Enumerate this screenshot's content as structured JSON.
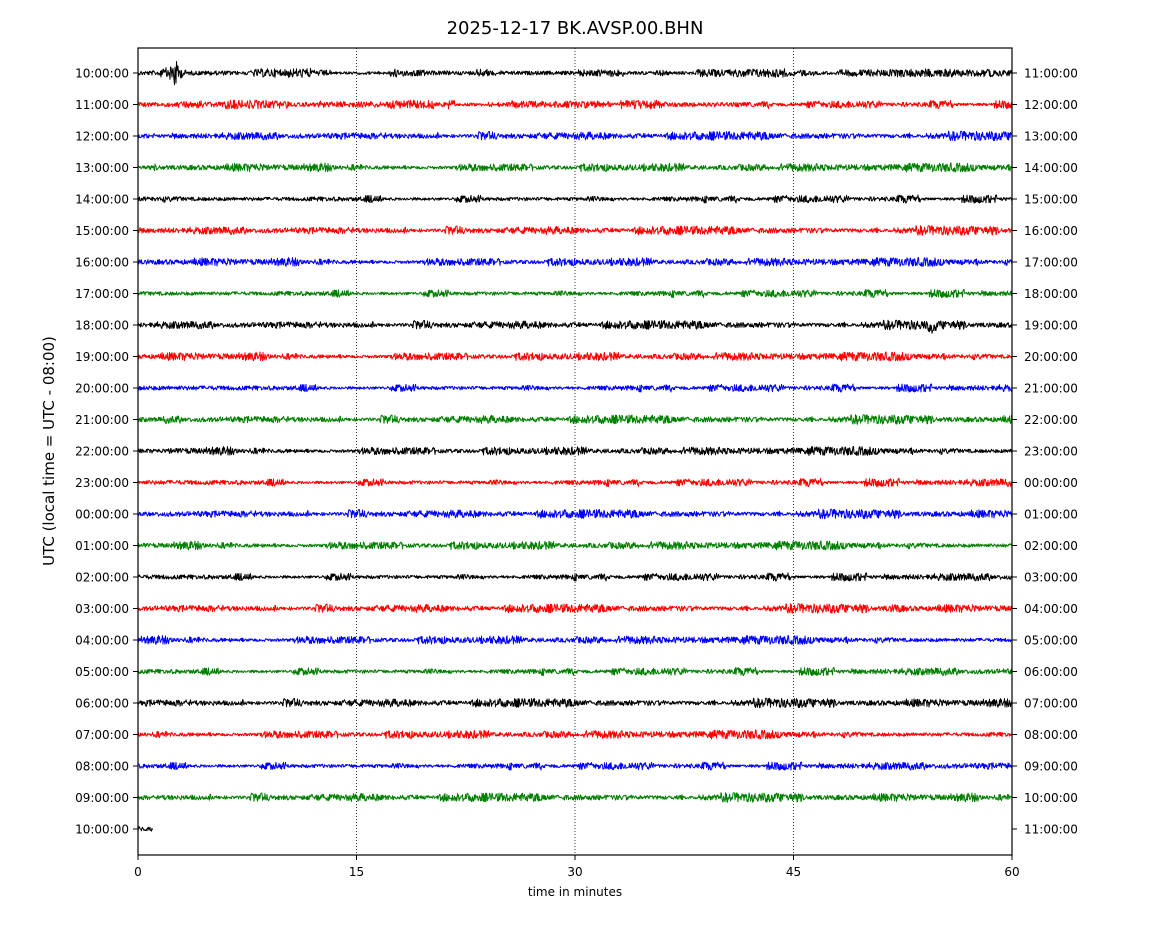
{
  "chart_data": {
    "type": "line",
    "title": "2025-12-17 BK.AVSP.00.BHN",
    "xlabel": "time in minutes",
    "ylabel": "UTC (local time = UTC - 08:00)",
    "xlim": [
      0,
      60
    ],
    "x_ticks": [
      0,
      15,
      30,
      45,
      60
    ],
    "x_tick_labels": [
      "0",
      "15",
      "30",
      "45",
      "60"
    ],
    "grid": "vertical dotted lines at 15, 30, 45",
    "trace_colors": [
      "#000000",
      "#ff0000",
      "#0000ff",
      "#008000"
    ],
    "left_tick_labels": [
      "10:00:00",
      "11:00:00",
      "12:00:00",
      "13:00:00",
      "14:00:00",
      "15:00:00",
      "16:00:00",
      "17:00:00",
      "18:00:00",
      "19:00:00",
      "20:00:00",
      "21:00:00",
      "22:00:00",
      "23:00:00",
      "00:00:00",
      "01:00:00",
      "02:00:00",
      "03:00:00",
      "04:00:00",
      "05:00:00",
      "06:00:00",
      "07:00:00",
      "08:00:00",
      "09:00:00",
      "10:00:00"
    ],
    "right_tick_labels": [
      "11:00:00",
      "12:00:00",
      "13:00:00",
      "14:00:00",
      "15:00:00",
      "16:00:00",
      "17:00:00",
      "18:00:00",
      "19:00:00",
      "20:00:00",
      "21:00:00",
      "22:00:00",
      "23:00:00",
      "00:00:00",
      "01:00:00",
      "02:00:00",
      "03:00:00",
      "04:00:00",
      "05:00:00",
      "06:00:00",
      "07:00:00",
      "08:00:00",
      "09:00:00",
      "10:00:00",
      "11:00:00"
    ],
    "series": [
      {
        "label_index": 0,
        "color": "#000000",
        "x_range": [
          0,
          60
        ],
        "events": [
          {
            "x": 2.5,
            "amplitude": "large"
          }
        ]
      },
      {
        "label_index": 1,
        "color": "#ff0000",
        "x_range": [
          0,
          60
        ]
      },
      {
        "label_index": 2,
        "color": "#0000ff",
        "x_range": [
          0,
          60
        ]
      },
      {
        "label_index": 3,
        "color": "#008000",
        "x_range": [
          0,
          60
        ]
      },
      {
        "label_index": 4,
        "color": "#000000",
        "x_range": [
          0,
          60
        ]
      },
      {
        "label_index": 5,
        "color": "#ff0000",
        "x_range": [
          0,
          60
        ]
      },
      {
        "label_index": 6,
        "color": "#0000ff",
        "x_range": [
          0,
          60
        ]
      },
      {
        "label_index": 7,
        "color": "#008000",
        "x_range": [
          0,
          60
        ]
      },
      {
        "label_index": 8,
        "color": "#000000",
        "x_range": [
          0,
          60
        ],
        "events": [
          {
            "x": 54.5,
            "amplitude": "offset"
          }
        ]
      },
      {
        "label_index": 9,
        "color": "#ff0000",
        "x_range": [
          0,
          60
        ]
      },
      {
        "label_index": 10,
        "color": "#0000ff",
        "x_range": [
          0,
          60
        ]
      },
      {
        "label_index": 11,
        "color": "#008000",
        "x_range": [
          0,
          60
        ]
      },
      {
        "label_index": 12,
        "color": "#000000",
        "x_range": [
          0,
          60
        ]
      },
      {
        "label_index": 13,
        "color": "#ff0000",
        "x_range": [
          0,
          60
        ]
      },
      {
        "label_index": 14,
        "color": "#0000ff",
        "x_range": [
          0,
          60
        ]
      },
      {
        "label_index": 15,
        "color": "#008000",
        "x_range": [
          0,
          60
        ]
      },
      {
        "label_index": 16,
        "color": "#000000",
        "x_range": [
          0,
          60
        ]
      },
      {
        "label_index": 17,
        "color": "#ff0000",
        "x_range": [
          0,
          60
        ],
        "events": [
          {
            "x": 52,
            "amplitude": "medium"
          }
        ]
      },
      {
        "label_index": 18,
        "color": "#0000ff",
        "x_range": [
          0,
          60
        ]
      },
      {
        "label_index": 19,
        "color": "#008000",
        "x_range": [
          0,
          60
        ]
      },
      {
        "label_index": 20,
        "color": "#000000",
        "x_range": [
          0,
          60
        ]
      },
      {
        "label_index": 21,
        "color": "#ff0000",
        "x_range": [
          0,
          60
        ]
      },
      {
        "label_index": 22,
        "color": "#0000ff",
        "x_range": [
          0,
          60
        ]
      },
      {
        "label_index": 23,
        "color": "#008000",
        "x_range": [
          0,
          60
        ]
      },
      {
        "label_index": 24,
        "color": "#000000",
        "x_range": [
          0,
          1
        ]
      }
    ]
  }
}
